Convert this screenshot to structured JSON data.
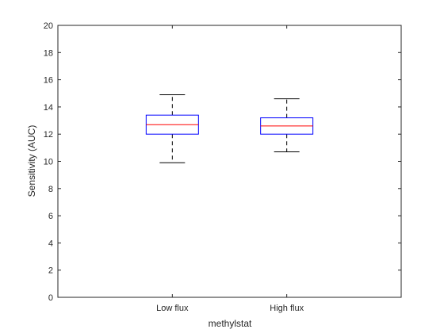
{
  "chart_data": {
    "type": "boxplot",
    "xlabel": "methylstat",
    "ylabel": "Sensitivity (AUC)",
    "ylim": [
      0,
      20
    ],
    "yticks": [
      "0",
      "2",
      "4",
      "6",
      "8",
      "10",
      "12",
      "14",
      "16",
      "18",
      "20"
    ],
    "categories": [
      "Low flux",
      "High flux"
    ],
    "boxes": [
      {
        "category": "Low flux",
        "min": 9.9,
        "q1": 12.0,
        "median": 12.7,
        "q3": 13.4,
        "max": 14.9
      },
      {
        "category": "High flux",
        "min": 10.7,
        "q1": 12.0,
        "median": 12.6,
        "q3": 13.2,
        "max": 14.6
      }
    ],
    "grid": false,
    "colors": {
      "box": "#0000ff",
      "median": "#ff0000",
      "whisker": "#000000",
      "axis": "#262626"
    }
  }
}
